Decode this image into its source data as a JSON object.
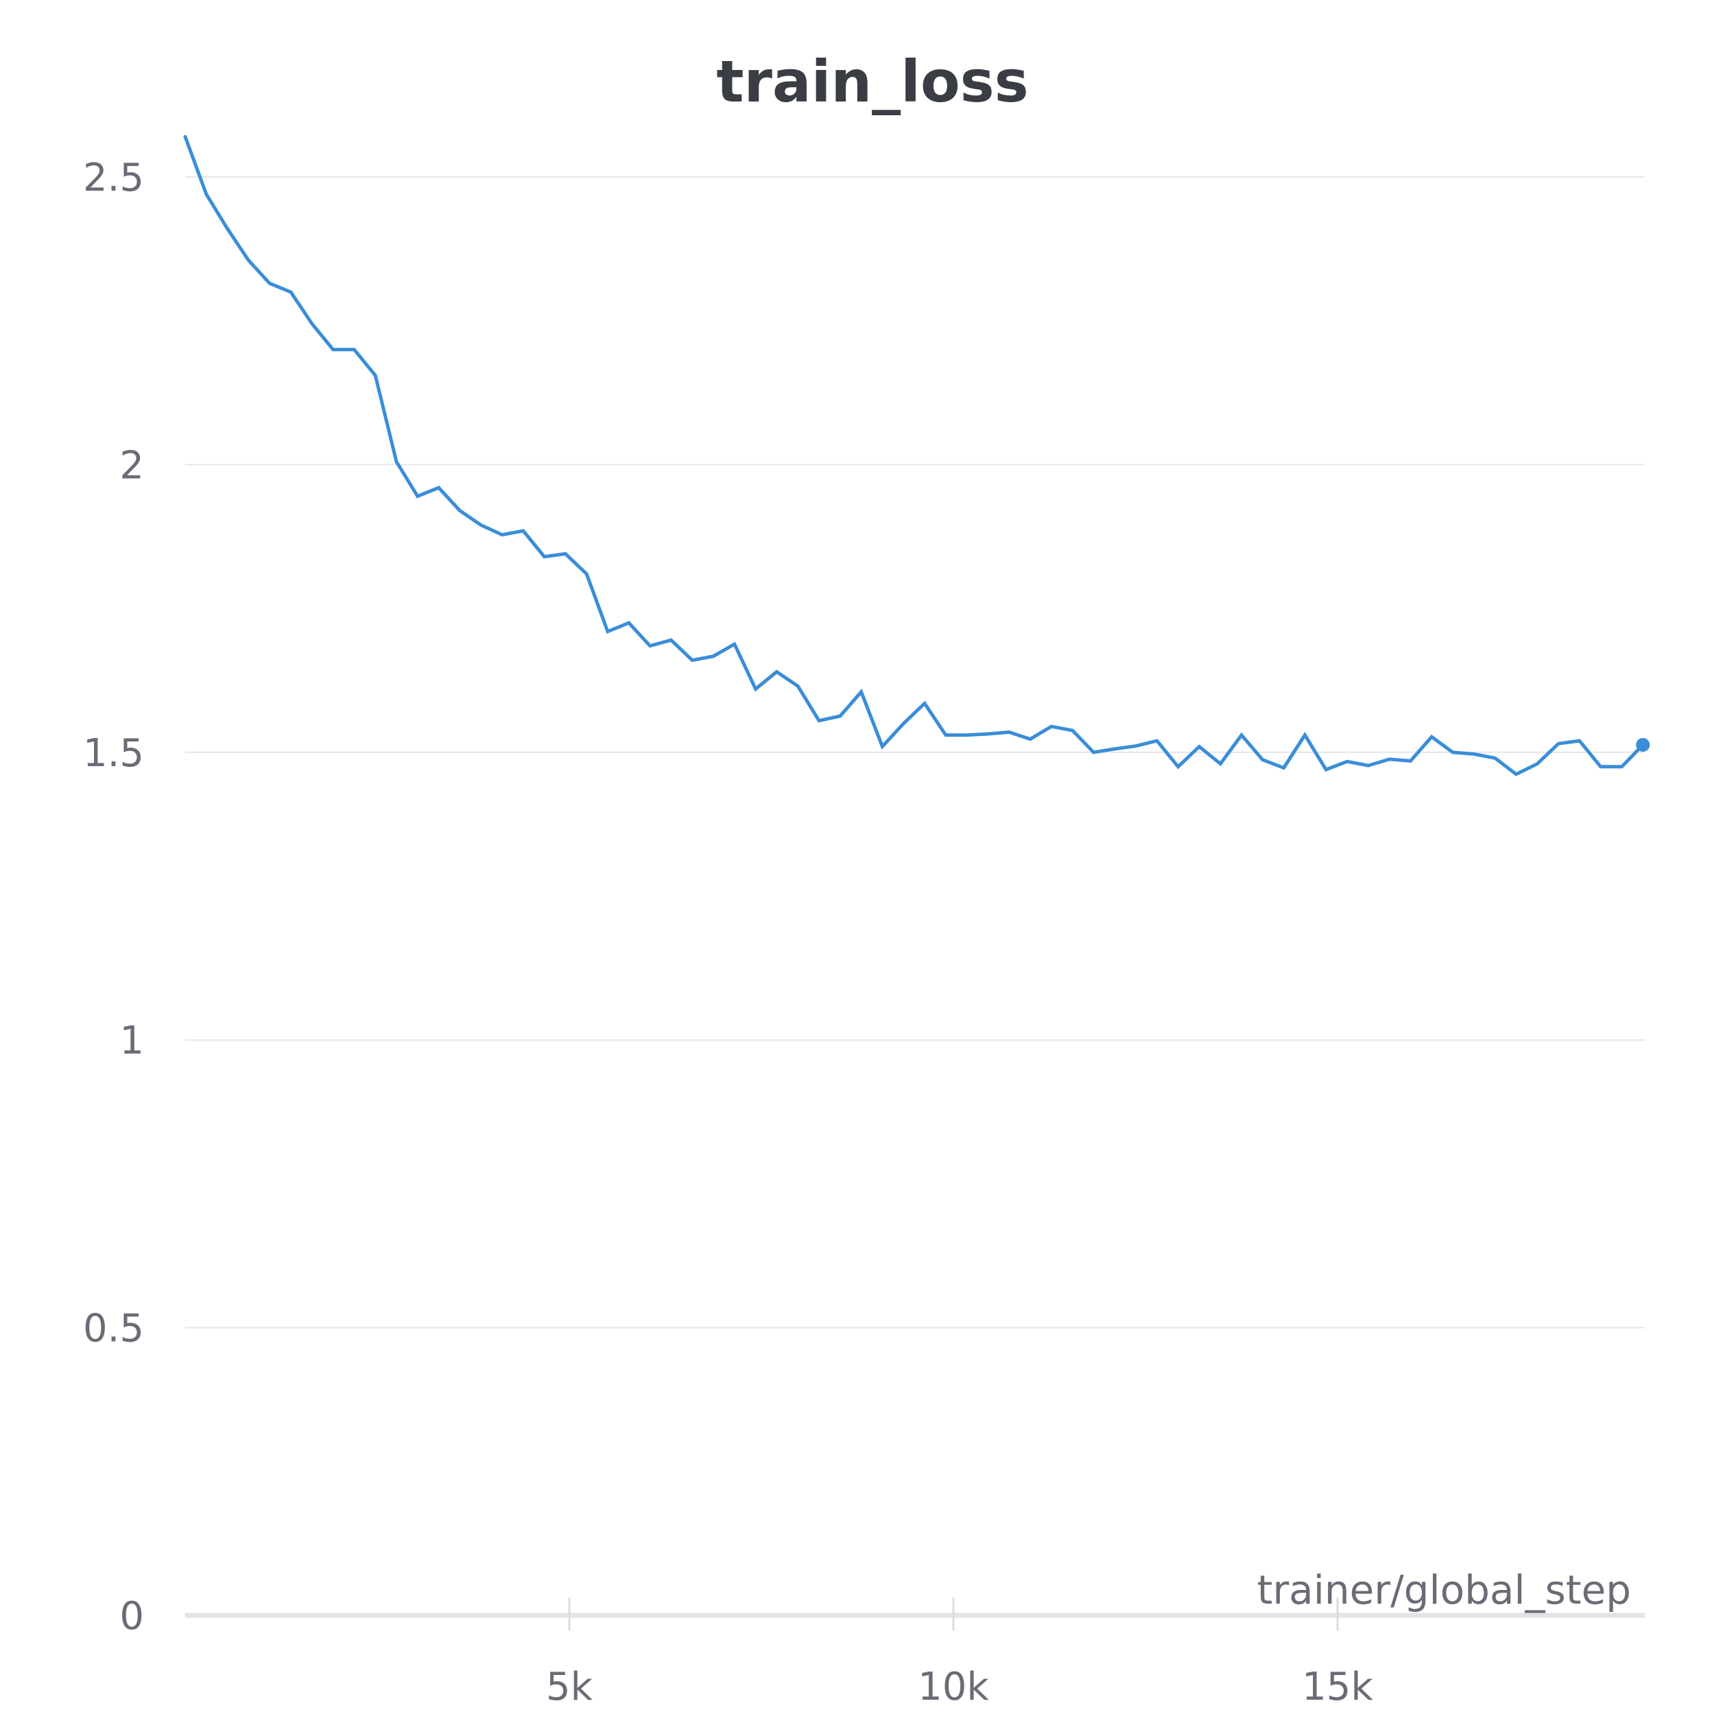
{
  "chart_data": {
    "type": "line",
    "title": "train_loss",
    "xlabel": "trainer/global_step",
    "ylabel": "",
    "xlim": [
      0,
      19000
    ],
    "ylim": [
      0,
      2.6
    ],
    "x_ticks": [
      {
        "value": 5000,
        "label": "5k"
      },
      {
        "value": 10000,
        "label": "10k"
      },
      {
        "value": 15000,
        "label": "15k"
      }
    ],
    "y_ticks": [
      {
        "value": 0,
        "label": "0"
      },
      {
        "value": 0.5,
        "label": "0.5"
      },
      {
        "value": 1,
        "label": "1"
      },
      {
        "value": 1.5,
        "label": "1.5"
      },
      {
        "value": 2,
        "label": "2"
      },
      {
        "value": 2.5,
        "label": "2.5"
      }
    ],
    "grid": true,
    "line_color": "#3a8dd8",
    "series": [
      {
        "x": [
          0,
          275,
          550,
          825,
          1100,
          1375,
          1650,
          1925,
          2200,
          2475,
          2750,
          3025,
          3300,
          3575,
          3850,
          4125,
          4400,
          4675,
          4950,
          5225,
          5500,
          5775,
          6050,
          6325,
          6600,
          6875,
          7150,
          7425,
          7700,
          7975,
          8250,
          8525,
          8800,
          9075,
          9350,
          9625,
          9900,
          10175,
          10450,
          10725,
          11000,
          11275,
          11550,
          11825,
          12100,
          12375,
          12650,
          12925,
          13200,
          13475,
          13750,
          14025,
          14300,
          14575,
          14850,
          15125,
          15400,
          15675,
          15950,
          16225,
          16500,
          16775,
          17050,
          17325,
          17600,
          17875,
          18150,
          18425,
          18700,
          18975
        ],
        "values": [
          2.57,
          2.47,
          2.41,
          2.355,
          2.315,
          2.3,
          2.245,
          2.2,
          2.2,
          2.155,
          2.005,
          1.945,
          1.96,
          1.92,
          1.895,
          1.878,
          1.885,
          1.84,
          1.845,
          1.81,
          1.71,
          1.725,
          1.685,
          1.695,
          1.66,
          1.667,
          1.688,
          1.61,
          1.64,
          1.615,
          1.555,
          1.563,
          1.605,
          1.51,
          1.55,
          1.585,
          1.53,
          1.53,
          1.532,
          1.535,
          1.523,
          1.545,
          1.538,
          1.5,
          1.506,
          1.511,
          1.52,
          1.475,
          1.51,
          1.48,
          1.53,
          1.487,
          1.473,
          1.53,
          1.47,
          1.484,
          1.477,
          1.488,
          1.485,
          1.527,
          1.5,
          1.497,
          1.49,
          1.462,
          1.48,
          1.515,
          1.52,
          1.475,
          1.475,
          1.513
        ]
      }
    ]
  }
}
